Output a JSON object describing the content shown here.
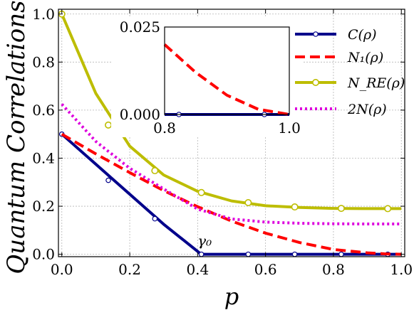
{
  "chart_data": {
    "type": "line",
    "xlabel": "p",
    "ylabel": "Quantum Correlations",
    "xlim": [
      -0.01,
      1.01
    ],
    "ylim": [
      -0.01,
      1.02
    ],
    "x_ticks": [
      "0.0",
      "0.2",
      "0.4",
      "0.6",
      "0.8",
      "1.0"
    ],
    "y_ticks": [
      "0.0",
      "0.2",
      "0.4",
      "0.6",
      "0.8",
      "1.0"
    ],
    "grid": true,
    "legend_placement": "top-right",
    "series": [
      {
        "name": "C(ρ)",
        "color": "#00008b",
        "style": "solid-dot-markers",
        "x": [
          0.0,
          0.1,
          0.2,
          0.3,
          0.4,
          0.41,
          0.5,
          0.6,
          0.7,
          0.8,
          0.9,
          1.0
        ],
        "y": [
          0.5,
          0.375,
          0.25,
          0.125,
          0.012,
          0.0,
          0.0,
          0.0,
          0.0,
          0.0,
          0.0,
          0.0
        ],
        "markers_x": [
          0.0,
          0.137,
          0.274,
          0.411,
          0.549,
          0.686,
          0.823,
          0.96
        ],
        "markers_y": [
          0.5,
          0.308,
          0.148,
          0.0,
          0.0,
          0.0,
          0.0,
          0.0
        ]
      },
      {
        "name": "N₁(ρ)",
        "color": "#ff0000",
        "style": "dashed",
        "x": [
          0.0,
          0.1,
          0.2,
          0.3,
          0.4,
          0.5,
          0.6,
          0.7,
          0.8,
          0.9,
          0.95,
          1.0
        ],
        "y": [
          0.5,
          0.418,
          0.34,
          0.265,
          0.198,
          0.138,
          0.088,
          0.049,
          0.02,
          0.006,
          0.002,
          0.0
        ]
      },
      {
        "name": "N_RE(ρ)",
        "color": "#bdbd00",
        "style": "solid-open-markers",
        "x": [
          0.0,
          0.1,
          0.2,
          0.3,
          0.4,
          0.5,
          0.6,
          0.7,
          0.8,
          0.9,
          1.0
        ],
        "y": [
          1.0,
          0.67,
          0.45,
          0.33,
          0.262,
          0.222,
          0.202,
          0.195,
          0.191,
          0.19,
          0.19
        ],
        "markers_x": [
          0.0,
          0.137,
          0.274,
          0.411,
          0.549,
          0.686,
          0.823,
          0.96
        ],
        "markers_y": [
          1.0,
          0.538,
          0.348,
          0.257,
          0.215,
          0.197,
          0.191,
          0.19
        ]
      },
      {
        "name": "2N(ρ)",
        "color": "#dd00dd",
        "style": "dotted",
        "x": [
          0.0,
          0.1,
          0.2,
          0.3,
          0.4,
          0.5,
          0.6,
          0.7,
          0.8,
          0.9,
          1.0
        ],
        "y": [
          0.625,
          0.47,
          0.358,
          0.272,
          0.188,
          0.147,
          0.134,
          0.129,
          0.127,
          0.126,
          0.126
        ]
      }
    ],
    "annotation": {
      "text": "γ₀",
      "x": 0.41,
      "y": 0.0
    },
    "inset": {
      "xlim": [
        0.8,
        1.0
      ],
      "ylim": [
        0.0,
        0.025
      ],
      "x_ticks": [
        "0.8",
        "1.0"
      ],
      "y_ticks": [
        "0.000",
        "0.025"
      ],
      "series": [
        {
          "name": "C(ρ)",
          "color": "#00008b",
          "x": [
            0.8,
            0.9,
            1.0
          ],
          "y": [
            0.0,
            0.0,
            0.0
          ],
          "markers_x": [
            0.823,
            0.96
          ],
          "markers_y": [
            0.0,
            0.0
          ]
        },
        {
          "name": "N₁(ρ)",
          "color": "#ff0000",
          "x": [
            0.8,
            0.85,
            0.9,
            0.95,
            1.0
          ],
          "y": [
            0.02,
            0.012,
            0.0055,
            0.0015,
            0.0
          ]
        }
      ]
    }
  }
}
